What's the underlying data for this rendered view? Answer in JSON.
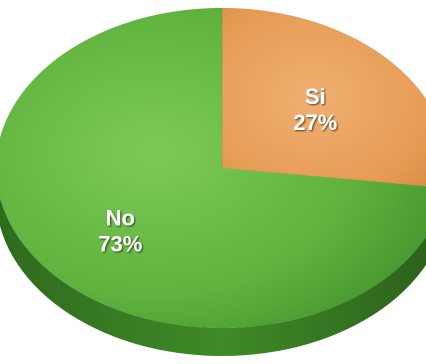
{
  "chart_data": {
    "type": "pie",
    "slices": [
      {
        "label": "Si",
        "value": 27,
        "value_label": "27%",
        "color": "#e59a52"
      },
      {
        "label": "No",
        "value": 73,
        "value_label": "73%",
        "color": "#5fb23e"
      }
    ],
    "legend": "none",
    "style": "3d"
  }
}
